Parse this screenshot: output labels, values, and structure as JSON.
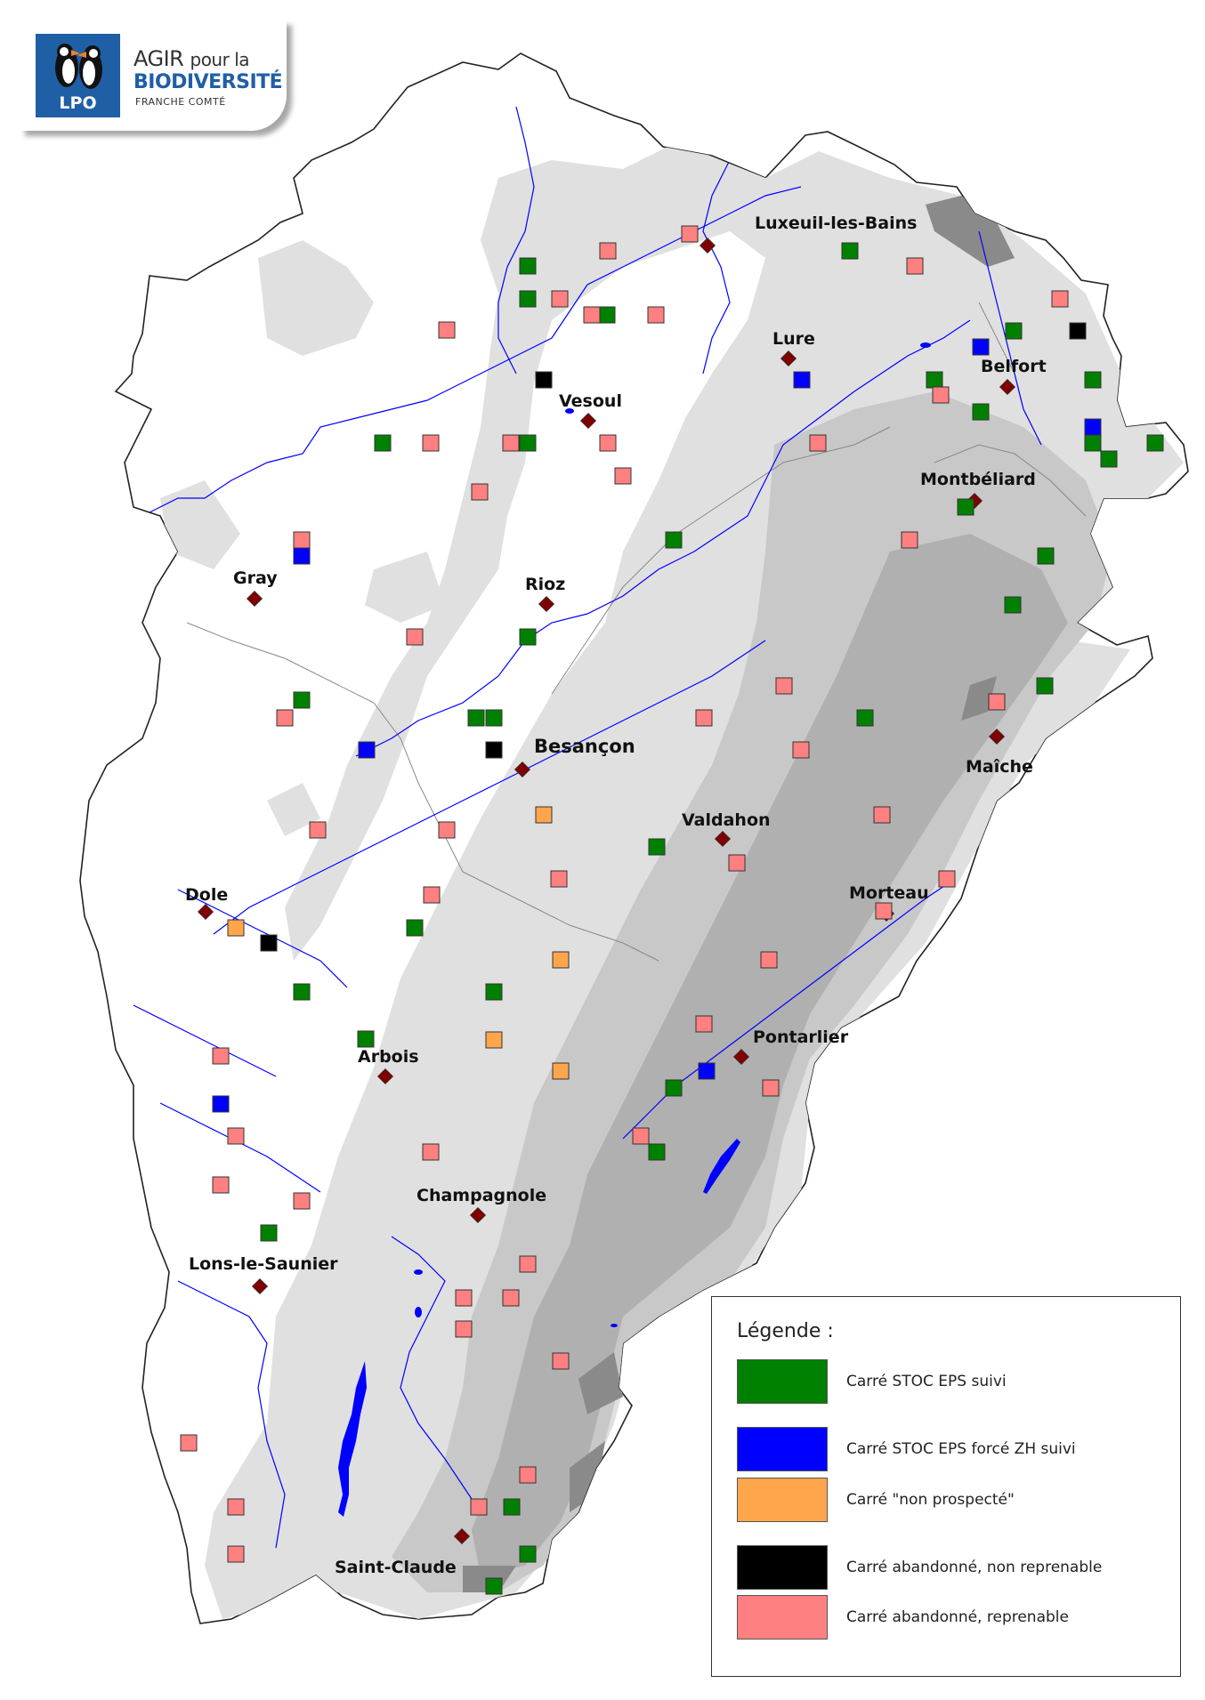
{
  "logo": {
    "agir": "AGIR",
    "pour": "pour la",
    "bio": "BIODIVERSITÉ",
    "region": "FRANCHE COMTÉ",
    "lpo": "LPO"
  },
  "colors": {
    "suivi": "#008000",
    "force_zh": "#0000ff",
    "non_prospecte": "#ffa64d",
    "abandonne_non": "#000000",
    "abandonne_rep": "#ff8080",
    "river": "#0000ff",
    "city": "#800000",
    "relief_1": "#e0e0e0",
    "relief_2": "#c8c8c8",
    "relief_3": "#b0b0b0",
    "relief_4": "#8a8a8a"
  },
  "cities": [
    {
      "id": "luxeuil",
      "name": "Luxeuil-les-Bains"
    },
    {
      "id": "lure",
      "name": "Lure"
    },
    {
      "id": "belfort",
      "name": "Belfort"
    },
    {
      "id": "vesoul",
      "name": "Vesoul"
    },
    {
      "id": "montbeliard",
      "name": "Montbéliard"
    },
    {
      "id": "gray",
      "name": "Gray"
    },
    {
      "id": "rioz",
      "name": "Rioz"
    },
    {
      "id": "besancon",
      "name": "Besançon"
    },
    {
      "id": "maiche",
      "name": "Maîche"
    },
    {
      "id": "valdahon",
      "name": "Valdahon"
    },
    {
      "id": "morteau",
      "name": "Morteau"
    },
    {
      "id": "dole",
      "name": "Dole"
    },
    {
      "id": "pontarlier",
      "name": "Pontarlier"
    },
    {
      "id": "arbois",
      "name": "Arbois"
    },
    {
      "id": "champagnole",
      "name": "Champagnole"
    },
    {
      "id": "lons",
      "name": "Lons-le-Saunier"
    },
    {
      "id": "saintclaude",
      "name": "Saint-Claude"
    }
  ],
  "legend": {
    "title": "Légende :",
    "items": [
      {
        "key": "suivi",
        "label": "Carré STOC EPS suivi",
        "color": "#008000"
      },
      {
        "key": "force_zh",
        "label": "Carré STOC EPS forcé ZH suivi",
        "color": "#0000ff"
      },
      {
        "key": "non_prospecte",
        "label": "Carré \"non prospecté\"",
        "color": "#ffa64d"
      },
      {
        "key": "abandonne_non",
        "label": "Carré abandonné, non reprenable",
        "color": "#000000"
      },
      {
        "key": "abandonne_rep",
        "label": "Carré abandonné, reprenable",
        "color": "#ff8080"
      }
    ]
  }
}
